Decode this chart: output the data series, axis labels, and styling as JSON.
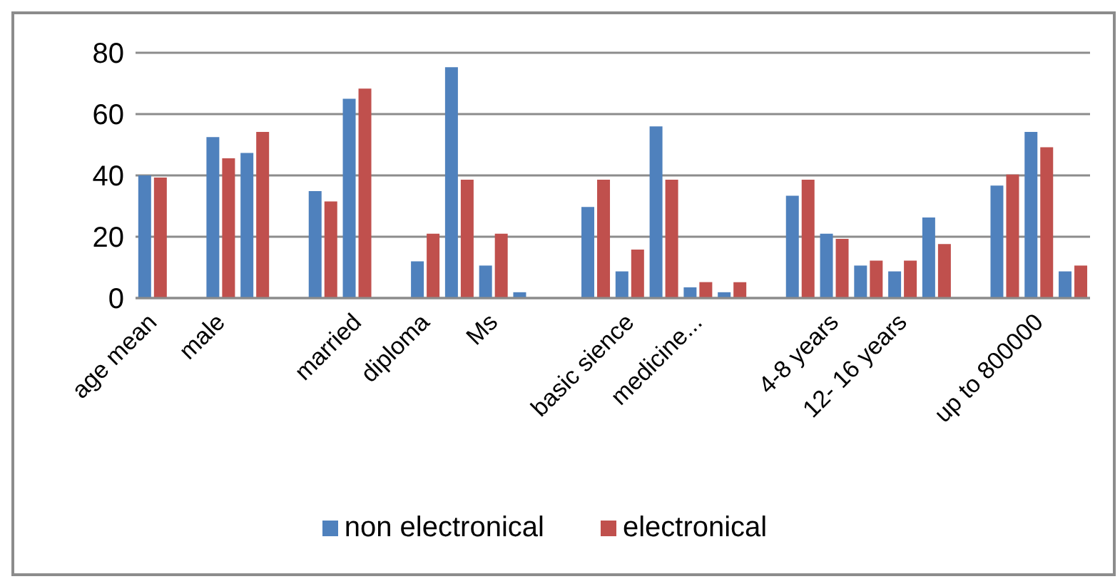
{
  "chart_data": {
    "type": "bar",
    "categories": [
      "age mean",
      null,
      "male",
      null,
      null,
      null,
      "married",
      null,
      "diploma",
      null,
      "Ms",
      null,
      null,
      null,
      "basic sience",
      null,
      "medicine...",
      null,
      null,
      null,
      "4-8 years",
      null,
      "12- 16 years",
      null,
      null,
      null,
      "up to 800000",
      null
    ],
    "series": [
      {
        "name": "non electronical",
        "color": "#4f81bd",
        "values": [
          40,
          null,
          52.5,
          47.3,
          null,
          34.9,
          65,
          null,
          12,
          75.3,
          10.6,
          1.9,
          null,
          29.7,
          8.7,
          56,
          3.5,
          1.9,
          null,
          33.4,
          21,
          10.6,
          8.7,
          26.3,
          null,
          36.7,
          54.2,
          8.7
        ]
      },
      {
        "name": "electronical",
        "color": "#c0504d",
        "values": [
          39.3,
          null,
          45.6,
          54.2,
          null,
          31.5,
          68.3,
          null,
          21,
          38.6,
          21,
          0,
          null,
          38.6,
          15.8,
          38.6,
          5.2,
          5.2,
          null,
          38.6,
          19.3,
          12.2,
          12.2,
          17.6,
          null,
          40.3,
          49.2,
          10.6
        ]
      }
    ],
    "ylim": [
      0,
      80
    ],
    "yticks": [
      0,
      20,
      40,
      60,
      80
    ],
    "grid": "y",
    "legend": "bottom"
  }
}
